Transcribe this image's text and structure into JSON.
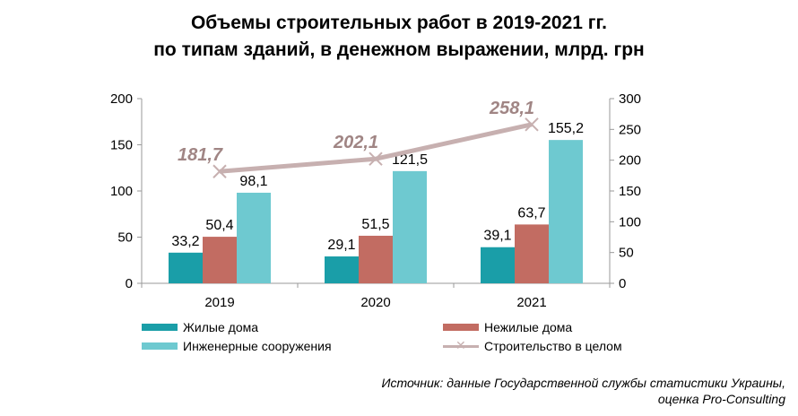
{
  "title": {
    "line1": "Объемы строительных  работ в 2019-2021 гг.",
    "line2": "по типам зданий, в денежном выражении, млрд. грн"
  },
  "source": {
    "line1": "Источник: данные Государственной службы статистики Украины,",
    "line2": "оценка Pro-Consulting"
  },
  "chart_data": {
    "type": "bar",
    "categories": [
      "2019",
      "2020",
      "2021"
    ],
    "series": [
      {
        "name": "Жилые дома",
        "values": [
          33.2,
          29.1,
          39.1
        ],
        "labels": [
          "33,2",
          "29,1",
          "39,1"
        ],
        "color": "#1a9ea8",
        "axis": "left"
      },
      {
        "name": "Нежилые дома",
        "values": [
          50.4,
          51.5,
          63.7
        ],
        "labels": [
          "50,4",
          "51,5",
          "63,7"
        ],
        "color": "#c26c62",
        "axis": "left"
      },
      {
        "name": "Инженерные сооружения",
        "values": [
          98.1,
          121.5,
          155.2
        ],
        "labels": [
          "98,1",
          "121,5",
          "155,2"
        ],
        "color": "#6ec9d0",
        "axis": "left"
      },
      {
        "name": "Строительство в целом",
        "type": "line",
        "values": [
          181.7,
          202.1,
          258.1
        ],
        "labels": [
          "181,7",
          "202,1",
          "258,1"
        ],
        "color": "#c7b0b0",
        "label_color": "#a08584",
        "axis": "right"
      }
    ],
    "y_left": {
      "min": 0,
      "max": 200,
      "ticks": [
        "0",
        "50",
        "100",
        "150",
        "200"
      ]
    },
    "y_right": {
      "min": 0,
      "max": 300,
      "ticks": [
        "0",
        "50",
        "100",
        "150",
        "200",
        "250",
        "300"
      ]
    },
    "grid": false,
    "legend": "bottom"
  }
}
